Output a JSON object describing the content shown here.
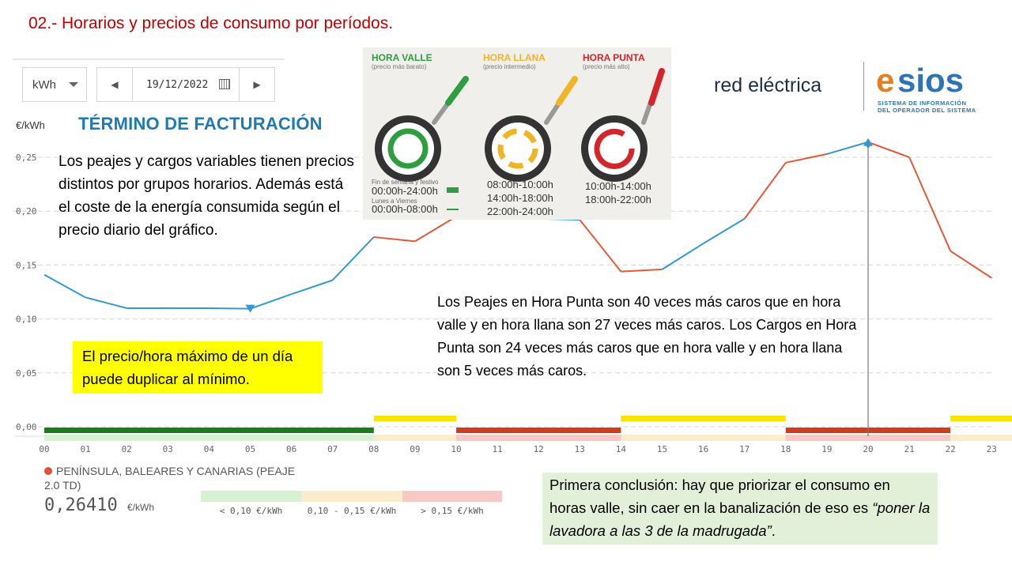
{
  "slide_title": "02.- Horarios y precios de consumo por períodos.",
  "controls": {
    "unit": "kWh",
    "date": "19/12/2022",
    "prev_icon": "◀",
    "next_icon": "▶"
  },
  "y_unit": "€/kWh",
  "facturacion_title": "TÉRMINO DE FACTURACIÓN",
  "legend": {
    "valle": {
      "title": "HORA VALLE",
      "sub": "(precio más barato)",
      "weekend_label": "Fin de semana y festivo",
      "weekend_time": "00:00h-24:00h",
      "weekday_label": "Lunes a Viernes",
      "weekday_time": "00:00h-08:00h",
      "color": "#2e9e3f"
    },
    "llana": {
      "title": "HORA LLANA",
      "sub": "(precio intermedio)",
      "times": [
        "08:00h-10:00h",
        "14:00h-18:00h",
        "22:00h-24:00h"
      ],
      "color": "#f0b428"
    },
    "punta": {
      "title": "HORA PUNTA",
      "sub": "(precio más alto)",
      "times": [
        "10:00h-14:00h",
        "18:00h-22:00h"
      ],
      "color": "#d3262b"
    }
  },
  "logo": {
    "brand": "red eléctrica",
    "e": "e",
    "sios": "sios",
    "sub1": "SISTEMA DE INFORMACIÓN",
    "sub2": "DEL OPERADOR DEL SISTEMA"
  },
  "texts": {
    "t1": "Los peajes y cargos variables tienen precios distintos por grupos horarios. Además está el coste de la energía consumida según el precio diario del gráfico.",
    "t2": "Los Peajes en Hora Punta son 40 veces más caros que en hora valle y en hora llana son 27 veces más caros. Los Cargos en Hora Punta son 24 veces más caros que en hora valle y en hora llana son 5 veces más caros.",
    "t3": "El precio/hora máximo de un día puede duplicar al mínimo.",
    "t4_main": "Primera conclusión: hay que priorizar el consumo en horas valle, sin caer en la banalización de eso es ",
    "t4_quote": "“poner la lavadora a las 3 de la madrugada”",
    "t4_end": "."
  },
  "bottom_legend": {
    "series": "PENÍNSULA, BALEARES Y CANARIAS (PEAJE",
    "series2": "2.0 TD)",
    "value": "0,26410",
    "value_unit": "€/kWh",
    "scale": [
      {
        "label": "< 0,10 €/kWh",
        "color": "#d7f1d3"
      },
      {
        "label": "0,10 - 0,15 €/kWh",
        "color": "#fbeccb"
      },
      {
        "label": "> 0,15 €/kWh",
        "color": "#f6c8c6"
      }
    ]
  },
  "chart_data": {
    "type": "line",
    "title": "TÉRMINO DE FACTURACIÓN",
    "ylabel": "€/kWh",
    "xlabel": "",
    "categories": [
      "00",
      "01",
      "02",
      "03",
      "04",
      "05",
      "06",
      "07",
      "08",
      "09",
      "10",
      "11",
      "12",
      "13",
      "14",
      "15",
      "16",
      "17",
      "18",
      "19",
      "20",
      "21",
      "22",
      "23"
    ],
    "yticks": [
      "0,25",
      "0,20",
      "0,15",
      "0,10",
      "0,05",
      "0,00"
    ],
    "ytick_values": [
      0.25,
      0.2,
      0.15,
      0.1,
      0.05,
      0.0
    ],
    "ylim": [
      0,
      0.25
    ],
    "values": [
      0.141,
      0.12,
      0.11,
      0.11,
      0.11,
      0.1095,
      0.123,
      0.136,
      0.176,
      0.172,
      0.195,
      0.193,
      0.193,
      0.192,
      0.144,
      0.146,
      0.17,
      0.193,
      0.245,
      0.253,
      0.2641,
      0.25,
      0.163,
      0.138
    ],
    "segment_colors": [
      "blue",
      "blue",
      "blue",
      "blue",
      "blue",
      "blue",
      "blue",
      "blue",
      "red",
      "red",
      "red",
      "blue",
      "blue",
      "red",
      "red",
      "blue",
      "blue",
      "red",
      "red",
      "blue",
      "red",
      "red",
      "red"
    ],
    "period_bars": [
      {
        "from": 0,
        "to": 8,
        "period": "valle",
        "color": "#1e7a1e",
        "level": "low"
      },
      {
        "from": 8,
        "to": 10,
        "period": "llana",
        "color": "#f7e400",
        "level": "mid"
      },
      {
        "from": 10,
        "to": 14,
        "period": "punta",
        "color": "#d23c1e",
        "level": "low"
      },
      {
        "from": 14,
        "to": 18,
        "period": "llana",
        "color": "#f7e400",
        "level": "mid"
      },
      {
        "from": 18,
        "to": 22,
        "period": "punta",
        "color": "#d23c1e",
        "level": "low"
      },
      {
        "from": 22,
        "to": 24,
        "period": "llana",
        "color": "#f7e400",
        "level": "mid"
      }
    ],
    "highlight_hour": 20,
    "min_hour": 5,
    "colors": {
      "blue": "#3399cc",
      "red": "#e05a3a"
    }
  }
}
